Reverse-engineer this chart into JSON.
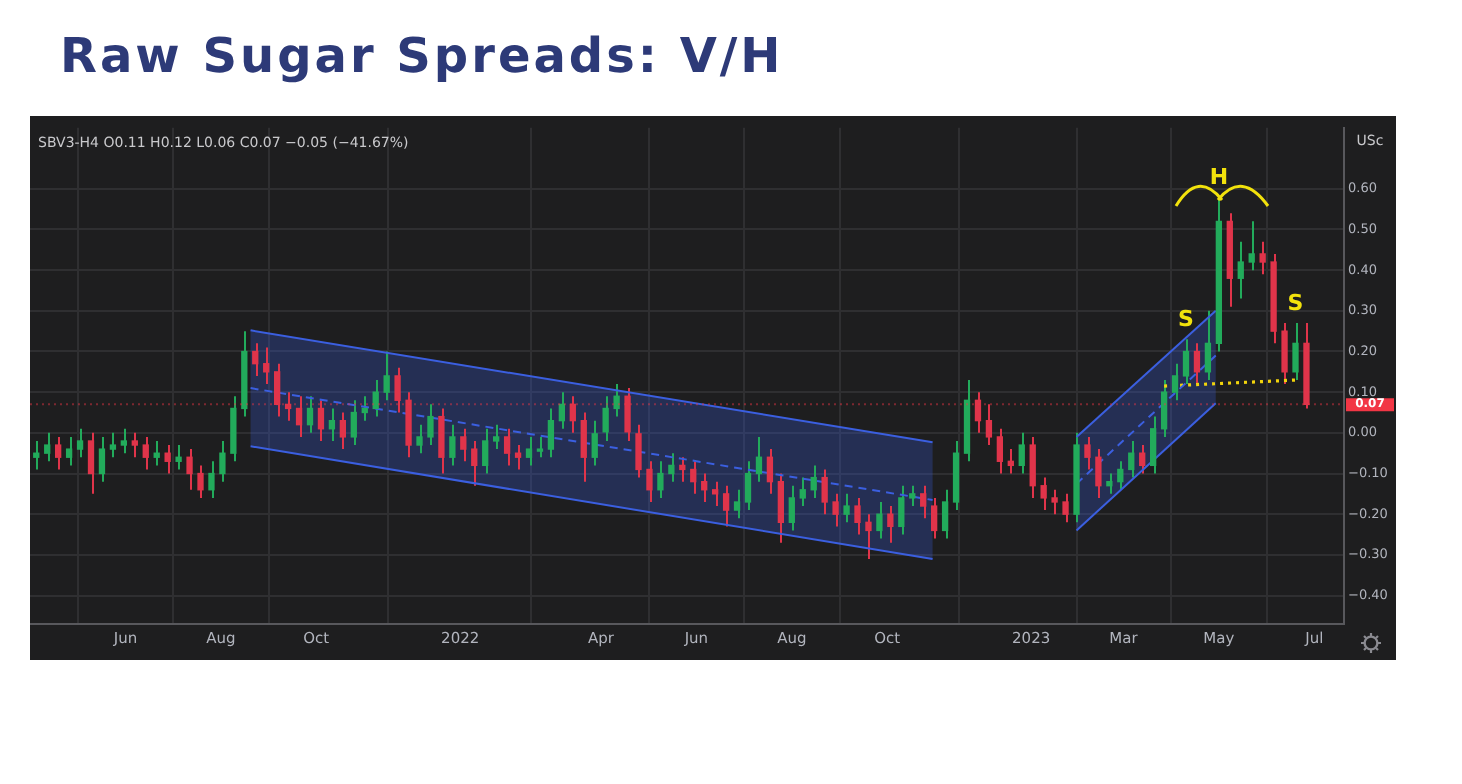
{
  "chart_data": {
    "type": "candlestick",
    "title": "Raw Sugar Spreads: V/H",
    "ylabel": "USc",
    "annotations": [
      "SBV3-H4 O0.11 H0.12 L0.06 C0.07 −0.05 (−41.67%)",
      {
        "text": "S",
        "x": "2023-04-10",
        "y": 0.23
      },
      {
        "text": "H",
        "x": "2023-05-01",
        "y": 0.58
      },
      {
        "text": "S",
        "x": "2023-06-19",
        "y": 0.27
      }
    ],
    "x": [
      "2021-04-05",
      "2021-04-12",
      "2021-04-19",
      "2021-04-26",
      "2021-05-03",
      "2021-05-10",
      "2021-05-17",
      "2021-05-24",
      "2021-05-31",
      "2021-06-07",
      "2021-06-14",
      "2021-06-21",
      "2021-06-28",
      "2021-07-05",
      "2021-07-12",
      "2021-07-19",
      "2021-07-26",
      "2021-08-02",
      "2021-08-09",
      "2021-08-16",
      "2021-08-23",
      "2021-08-30",
      "2021-09-06",
      "2021-09-13",
      "2021-09-20",
      "2021-09-27",
      "2021-10-04",
      "2021-10-11",
      "2021-10-18",
      "2021-10-25",
      "2021-11-01",
      "2021-11-08",
      "2021-11-15",
      "2021-11-22",
      "2021-11-29",
      "2021-12-06",
      "2021-12-13",
      "2021-12-20",
      "2021-12-27",
      "2022-01-03",
      "2022-01-10",
      "2022-01-17",
      "2022-01-24",
      "2022-01-31",
      "2022-02-07",
      "2022-02-14",
      "2022-02-21",
      "2022-02-28",
      "2022-03-07",
      "2022-03-14",
      "2022-03-21",
      "2022-03-28",
      "2022-04-04",
      "2022-04-11",
      "2022-04-18",
      "2022-04-25",
      "2022-05-02",
      "2022-05-09",
      "2022-05-16",
      "2022-05-23",
      "2022-05-30",
      "2022-06-06",
      "2022-06-13",
      "2022-06-20",
      "2022-06-27",
      "2022-07-04",
      "2022-07-11",
      "2022-07-18",
      "2022-07-25",
      "2022-08-01",
      "2022-08-08",
      "2022-08-15",
      "2022-08-22",
      "2022-08-29",
      "2022-09-05",
      "2022-09-12",
      "2022-09-19",
      "2022-09-26",
      "2022-10-03",
      "2022-10-10",
      "2022-10-17",
      "2022-10-24",
      "2022-10-31",
      "2022-11-07",
      "2022-11-14",
      "2022-11-21",
      "2022-11-28",
      "2022-12-05",
      "2022-12-12",
      "2022-12-19",
      "2022-12-26",
      "2023-01-02",
      "2023-01-09",
      "2023-01-16",
      "2023-01-23",
      "2023-01-30",
      "2023-02-06",
      "2023-02-13",
      "2023-02-20",
      "2023-02-27",
      "2023-03-06",
      "2023-03-13",
      "2023-03-20",
      "2023-03-27",
      "2023-04-03",
      "2023-04-10",
      "2023-04-17",
      "2023-04-24",
      "2023-05-01",
      "2023-05-08",
      "2023-05-15",
      "2023-05-22",
      "2023-05-29",
      "2023-06-05",
      "2023-06-12",
      "2023-06-19",
      "2023-06-26"
    ],
    "ohlc": [
      [
        -0.06,
        -0.02,
        -0.09,
        -0.05
      ],
      [
        -0.05,
        0.0,
        -0.07,
        -0.03
      ],
      [
        -0.03,
        -0.01,
        -0.09,
        -0.06
      ],
      [
        -0.06,
        -0.01,
        -0.08,
        -0.04
      ],
      [
        -0.04,
        0.01,
        -0.06,
        -0.02
      ],
      [
        -0.02,
        0.0,
        -0.15,
        -0.1
      ],
      [
        -0.1,
        -0.01,
        -0.12,
        -0.04
      ],
      [
        -0.04,
        0.0,
        -0.06,
        -0.03
      ],
      [
        -0.03,
        0.01,
        -0.05,
        -0.02
      ],
      [
        -0.02,
        0.0,
        -0.06,
        -0.03
      ],
      [
        -0.03,
        -0.01,
        -0.09,
        -0.06
      ],
      [
        -0.06,
        -0.02,
        -0.08,
        -0.05
      ],
      [
        -0.05,
        -0.03,
        -0.1,
        -0.07
      ],
      [
        -0.07,
        -0.03,
        -0.09,
        -0.06
      ],
      [
        -0.06,
        -0.04,
        -0.14,
        -0.1
      ],
      [
        -0.1,
        -0.08,
        -0.16,
        -0.14
      ],
      [
        -0.14,
        -0.07,
        -0.16,
        -0.1
      ],
      [
        -0.1,
        -0.02,
        -0.12,
        -0.05
      ],
      [
        -0.05,
        0.09,
        -0.07,
        0.06
      ],
      [
        0.06,
        0.25,
        0.04,
        0.2
      ],
      [
        0.2,
        0.22,
        0.14,
        0.17
      ],
      [
        0.17,
        0.21,
        0.12,
        0.15
      ],
      [
        0.15,
        0.17,
        0.04,
        0.07
      ],
      [
        0.07,
        0.1,
        0.03,
        0.06
      ],
      [
        0.06,
        0.09,
        -0.01,
        0.02
      ],
      [
        0.02,
        0.09,
        0.0,
        0.06
      ],
      [
        0.06,
        0.08,
        -0.02,
        0.01
      ],
      [
        0.01,
        0.06,
        -0.02,
        0.03
      ],
      [
        0.03,
        0.05,
        -0.04,
        -0.01
      ],
      [
        -0.01,
        0.08,
        -0.03,
        0.05
      ],
      [
        0.05,
        0.09,
        0.03,
        0.06
      ],
      [
        0.06,
        0.13,
        0.04,
        0.1
      ],
      [
        0.1,
        0.2,
        0.08,
        0.14
      ],
      [
        0.14,
        0.16,
        0.05,
        0.08
      ],
      [
        0.08,
        0.1,
        -0.06,
        -0.03
      ],
      [
        -0.03,
        0.02,
        -0.05,
        -0.01
      ],
      [
        -0.01,
        0.07,
        -0.03,
        0.04
      ],
      [
        0.04,
        0.06,
        -0.1,
        -0.06
      ],
      [
        -0.06,
        0.02,
        -0.08,
        -0.01
      ],
      [
        -0.01,
        0.01,
        -0.07,
        -0.04
      ],
      [
        -0.04,
        -0.02,
        -0.13,
        -0.08
      ],
      [
        -0.08,
        0.01,
        -0.1,
        -0.02
      ],
      [
        -0.02,
        0.02,
        -0.04,
        -0.01
      ],
      [
        -0.01,
        0.01,
        -0.08,
        -0.05
      ],
      [
        -0.05,
        -0.03,
        -0.09,
        -0.06
      ],
      [
        -0.06,
        -0.01,
        -0.08,
        -0.04
      ],
      [
        -0.04,
        -0.01,
        -0.06,
        -0.04
      ],
      [
        -0.04,
        0.06,
        -0.06,
        0.03
      ],
      [
        0.03,
        0.1,
        0.01,
        0.07
      ],
      [
        0.07,
        0.09,
        0.0,
        0.03
      ],
      [
        0.03,
        0.05,
        -0.12,
        -0.06
      ],
      [
        -0.06,
        0.03,
        -0.08,
        0.0
      ],
      [
        0.0,
        0.09,
        -0.02,
        0.06
      ],
      [
        0.06,
        0.12,
        0.04,
        0.09
      ],
      [
        0.09,
        0.11,
        -0.02,
        0.0
      ],
      [
        0.0,
        0.02,
        -0.11,
        -0.09
      ],
      [
        -0.09,
        -0.07,
        -0.17,
        -0.14
      ],
      [
        -0.14,
        -0.07,
        -0.16,
        -0.1
      ],
      [
        -0.1,
        -0.05,
        -0.12,
        -0.08
      ],
      [
        -0.08,
        -0.06,
        -0.12,
        -0.09
      ],
      [
        -0.09,
        -0.07,
        -0.15,
        -0.12
      ],
      [
        -0.12,
        -0.1,
        -0.17,
        -0.14
      ],
      [
        -0.14,
        -0.12,
        -0.18,
        -0.15
      ],
      [
        -0.15,
        -0.13,
        -0.23,
        -0.19
      ],
      [
        -0.19,
        -0.14,
        -0.21,
        -0.17
      ],
      [
        -0.17,
        -0.07,
        -0.19,
        -0.1
      ],
      [
        -0.1,
        -0.01,
        -0.12,
        -0.06
      ],
      [
        -0.06,
        -0.04,
        -0.15,
        -0.12
      ],
      [
        -0.12,
        -0.1,
        -0.27,
        -0.22
      ],
      [
        -0.22,
        -0.13,
        -0.24,
        -0.16
      ],
      [
        -0.16,
        -0.11,
        -0.18,
        -0.14
      ],
      [
        -0.14,
        -0.08,
        -0.16,
        -0.11
      ],
      [
        -0.11,
        -0.09,
        -0.2,
        -0.17
      ],
      [
        -0.17,
        -0.15,
        -0.23,
        -0.2
      ],
      [
        -0.2,
        -0.15,
        -0.22,
        -0.18
      ],
      [
        -0.18,
        -0.16,
        -0.25,
        -0.22
      ],
      [
        -0.22,
        -0.2,
        -0.31,
        -0.24
      ],
      [
        -0.24,
        -0.17,
        -0.26,
        -0.2
      ],
      [
        -0.2,
        -0.18,
        -0.27,
        -0.23
      ],
      [
        -0.23,
        -0.13,
        -0.25,
        -0.16
      ],
      [
        -0.16,
        -0.13,
        -0.18,
        -0.15
      ],
      [
        -0.15,
        -0.13,
        -0.21,
        -0.18
      ],
      [
        -0.18,
        -0.16,
        -0.26,
        -0.24
      ],
      [
        -0.24,
        -0.14,
        -0.26,
        -0.17
      ],
      [
        -0.17,
        -0.02,
        -0.19,
        -0.05
      ],
      [
        -0.05,
        0.13,
        -0.07,
        0.08
      ],
      [
        0.08,
        0.1,
        0.0,
        0.03
      ],
      [
        0.03,
        0.07,
        -0.03,
        -0.01
      ],
      [
        -0.01,
        0.01,
        -0.1,
        -0.07
      ],
      [
        -0.07,
        -0.04,
        -0.1,
        -0.08
      ],
      [
        -0.08,
        0.0,
        -0.1,
        -0.03
      ],
      [
        -0.03,
        -0.01,
        -0.16,
        -0.13
      ],
      [
        -0.13,
        -0.11,
        -0.19,
        -0.16
      ],
      [
        -0.16,
        -0.14,
        -0.2,
        -0.17
      ],
      [
        -0.17,
        -0.15,
        -0.22,
        -0.2
      ],
      [
        -0.2,
        0.0,
        -0.22,
        -0.03
      ],
      [
        -0.03,
        -0.01,
        -0.09,
        -0.06
      ],
      [
        -0.06,
        -0.04,
        -0.16,
        -0.13
      ],
      [
        -0.13,
        -0.1,
        -0.15,
        -0.12
      ],
      [
        -0.12,
        -0.07,
        -0.14,
        -0.09
      ],
      [
        -0.09,
        -0.02,
        -0.11,
        -0.05
      ],
      [
        -0.05,
        -0.03,
        -0.1,
        -0.08
      ],
      [
        -0.08,
        0.04,
        -0.1,
        0.01
      ],
      [
        0.01,
        0.13,
        -0.01,
        0.1
      ],
      [
        0.1,
        0.17,
        0.08,
        0.14
      ],
      [
        0.14,
        0.23,
        0.12,
        0.2
      ],
      [
        0.2,
        0.22,
        0.12,
        0.15
      ],
      [
        0.15,
        0.3,
        0.13,
        0.22
      ],
      [
        0.22,
        0.58,
        0.2,
        0.52
      ],
      [
        0.52,
        0.54,
        0.31,
        0.38
      ],
      [
        0.38,
        0.47,
        0.33,
        0.42
      ],
      [
        0.42,
        0.52,
        0.4,
        0.44
      ],
      [
        0.44,
        0.47,
        0.39,
        0.42
      ],
      [
        0.42,
        0.44,
        0.22,
        0.25
      ],
      [
        0.25,
        0.27,
        0.12,
        0.15
      ],
      [
        0.15,
        0.27,
        0.13,
        0.22
      ],
      [
        0.22,
        0.27,
        0.06,
        0.07
      ]
    ],
    "colors": [
      "#22ab5b",
      "#22ab5b",
      "#e0344a",
      "#22ab5b",
      "#22ab5b",
      "#e0344a",
      "#22ab5b",
      "#22ab5b",
      "#22ab5b",
      "#e0344a",
      "#e0344a",
      "#22ab5b",
      "#e0344a",
      "#22ab5b",
      "#e0344a",
      "#e0344a",
      "#22ab5b",
      "#22ab5b",
      "#22ab5b",
      "#22ab5b",
      "#e0344a",
      "#e0344a",
      "#e0344a",
      "#e0344a",
      "#e0344a",
      "#22ab5b",
      "#e0344a",
      "#22ab5b",
      "#e0344a",
      "#22ab5b",
      "#22ab5b",
      "#22ab5b",
      "#22ab5b",
      "#e0344a",
      "#e0344a",
      "#22ab5b",
      "#22ab5b",
      "#e0344a",
      "#22ab5b",
      "#e0344a",
      "#e0344a",
      "#22ab5b",
      "#22ab5b",
      "#e0344a",
      "#e0344a",
      "#22ab5b",
      "#22ab5b",
      "#22ab5b",
      "#22ab5b",
      "#e0344a",
      "#e0344a",
      "#22ab5b",
      "#22ab5b",
      "#22ab5b",
      "#e0344a",
      "#e0344a",
      "#e0344a",
      "#22ab5b",
      "#22ab5b",
      "#e0344a",
      "#e0344a",
      "#e0344a",
      "#e0344a",
      "#e0344a",
      "#22ab5b",
      "#22ab5b",
      "#22ab5b",
      "#e0344a",
      "#e0344a",
      "#22ab5b",
      "#22ab5b",
      "#22ab5b",
      "#e0344a",
      "#e0344a",
      "#22ab5b",
      "#e0344a",
      "#e0344a",
      "#22ab5b",
      "#e0344a",
      "#22ab5b",
      "#22ab5b",
      "#e0344a",
      "#e0344a",
      "#22ab5b",
      "#22ab5b",
      "#22ab5b",
      "#e0344a",
      "#e0344a",
      "#e0344a",
      "#e0344a",
      "#22ab5b",
      "#e0344a",
      "#e0344a",
      "#e0344a",
      "#e0344a",
      "#22ab5b",
      "#e0344a",
      "#e0344a",
      "#22ab5b",
      "#22ab5b",
      "#22ab5b",
      "#e0344a",
      "#22ab5b",
      "#22ab5b",
      "#22ab5b",
      "#22ab5b",
      "#e0344a",
      "#22ab5b",
      "#22ab5b",
      "#e0344a",
      "#22ab5b",
      "#22ab5b",
      "#e0344a",
      "#e0344a",
      "#e0344a",
      "#22ab5b",
      "#e0344a"
    ],
    "series": [
      {
        "type": "line",
        "color": "#3b5fe0",
        "line_style": "dashed",
        "x": [
          "2021-08-20",
          "2022-10-30"
        ],
        "values": [
          0.11,
          -0.165
        ],
        "lower": [
          -0.033,
          -0.31
        ],
        "upper": [
          0.252,
          -0.023
        ]
      },
      {
        "type": "line",
        "color": "#3b5fe0",
        "line_style": "dashed",
        "x": [
          "2023-01-30",
          "2023-04-29"
        ],
        "values": [
          -0.125,
          0.19
        ],
        "lower": [
          -0.24,
          0.073
        ],
        "upper": [
          -0.01,
          0.3
        ]
      },
      {
        "type": "line",
        "color": "#3b5fe0",
        "line_style": "solid",
        "x": [
          "2021-08-20",
          "2022-10-30"
        ],
        "values": [
          0.252,
          -0.023
        ]
      },
      {
        "type": "line",
        "color": "#3b5fe0",
        "line_style": "solid",
        "x": [
          "2021-08-20",
          "2022-10-30"
        ],
        "values": [
          -0.033,
          -0.31
        ]
      },
      {
        "type": "line",
        "color": "#3b5fe0",
        "line_style": "solid",
        "x": [
          "2023-01-30",
          "2023-04-29"
        ],
        "values": [
          -0.01,
          0.3
        ]
      },
      {
        "type": "line",
        "color": "#3b5fe0",
        "line_style": "solid",
        "x": [
          "2023-01-30",
          "2023-04-29"
        ],
        "values": [
          -0.24,
          0.073
        ]
      },
      {
        "type": "line",
        "color": "#f2d40c",
        "line_style": "dotted",
        "x": [
          "2023-03-27",
          "2023-06-20"
        ],
        "values": [
          0.115,
          0.13
        ]
      }
    ],
    "xlim": [
      "2021-04-01",
      "2023-07-20"
    ],
    "xticks": [
      {
        "value": "2021-06-01",
        "label": "Jun"
      },
      {
        "value": "2021-08-01",
        "label": "Aug"
      },
      {
        "value": "2021-10-01",
        "label": "Oct"
      },
      {
        "value": "2022-01-01",
        "label": "2022"
      },
      {
        "value": "2022-04-01",
        "label": "Apr"
      },
      {
        "value": "2022-06-01",
        "label": "Jun"
      },
      {
        "value": "2022-08-01",
        "label": "Aug"
      },
      {
        "value": "2022-10-01",
        "label": "Oct"
      },
      {
        "value": "2023-01-01",
        "label": "2023"
      },
      {
        "value": "2023-03-01",
        "label": "Mar"
      },
      {
        "value": "2023-05-01",
        "label": "May"
      },
      {
        "value": "2023-07-01",
        "label": "Jul"
      }
    ],
    "ylim": [
      -0.47,
      0.75
    ],
    "yticks": [
      {
        "value": -0.4,
        "label": "−0.40"
      },
      {
        "value": -0.3,
        "label": "−0.30"
      },
      {
        "value": -0.2,
        "label": "−0.20"
      },
      {
        "value": -0.1,
        "label": "−0.10"
      },
      {
        "value": 0,
        "label": "0.00"
      },
      {
        "value": 0.1,
        "label": "0.10"
      },
      {
        "value": 0.2,
        "label": "0.20"
      },
      {
        "value": 0.3,
        "label": "0.30"
      },
      {
        "value": 0.4,
        "label": "0.40"
      },
      {
        "value": 0.5,
        "label": "0.50"
      },
      {
        "value": 0.6,
        "label": "0.60"
      }
    ],
    "ref_lines": [
      {
        "axis": "y",
        "value": 0.07,
        "label": "0.07",
        "color": "#f23645"
      }
    ],
    "grid": true,
    "legend": false
  }
}
